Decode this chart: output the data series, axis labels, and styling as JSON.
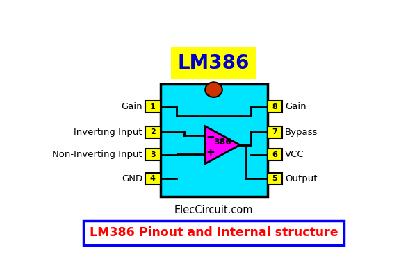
{
  "title": "LM386",
  "subtitle": "LM386 Pinout and Internal structure",
  "website": "ElecCircuit.com",
  "bg_color": "#ffffff",
  "chip_color": "#00E5FF",
  "chip_border": "#000000",
  "pin_box_color": "#FFFF00",
  "pin_box_border": "#000000",
  "notch_color": "#CC3300",
  "opamp_color": "#FF00FF",
  "title_bg": "#FFFF00",
  "title_text_color": "#0000CC",
  "subtitle_text_color": "#FF0000",
  "subtitle_border": "#0000FF",
  "website_color": "#000000",
  "left_pins": [
    {
      "num": "1",
      "label": "Gain"
    },
    {
      "num": "2",
      "label": "Inverting Input"
    },
    {
      "num": "3",
      "label": "Non-Inverting Input"
    },
    {
      "num": "4",
      "label": "GND"
    }
  ],
  "right_pins": [
    {
      "num": "8",
      "label": "Gain"
    },
    {
      "num": "7",
      "label": "Bypass"
    },
    {
      "num": "6",
      "label": "VCC"
    },
    {
      "num": "5",
      "label": "Output"
    }
  ],
  "opamp_label": "386"
}
